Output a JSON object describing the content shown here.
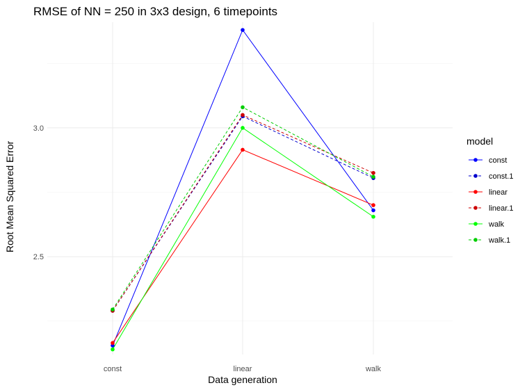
{
  "chart_data": {
    "type": "line",
    "title": "RMSE of NN =  250 in 3x3 design, 6 timepoints",
    "xlabel": "Data generation",
    "ylabel": "Root Mean Squared Error",
    "categories": [
      "const",
      "linear",
      "walk"
    ],
    "y_ticks": [
      2.5,
      3.0
    ],
    "y_tick_labels": [
      "2.5",
      "3.0"
    ],
    "ylim": [
      2.12,
      3.41
    ],
    "grid": true,
    "legend_position": "right",
    "legend_title": "model",
    "series": [
      {
        "name": "const",
        "values": [
          2.155,
          3.38,
          2.68
        ],
        "color": "#0000FF",
        "dashed": false
      },
      {
        "name": "const.1",
        "values": [
          2.29,
          3.045,
          2.805
        ],
        "color": "#0000CD",
        "dashed": true
      },
      {
        "name": "linear",
        "values": [
          2.165,
          2.915,
          2.7
        ],
        "color": "#FF0000",
        "dashed": false
      },
      {
        "name": "linear.1",
        "values": [
          2.29,
          3.05,
          2.825
        ],
        "color": "#CD0000",
        "dashed": true
      },
      {
        "name": "walk",
        "values": [
          2.14,
          3.0,
          2.655
        ],
        "color": "#00FF00",
        "dashed": false
      },
      {
        "name": "walk.1",
        "values": [
          2.295,
          3.08,
          2.81
        ],
        "color": "#00CD00",
        "dashed": true
      }
    ]
  }
}
